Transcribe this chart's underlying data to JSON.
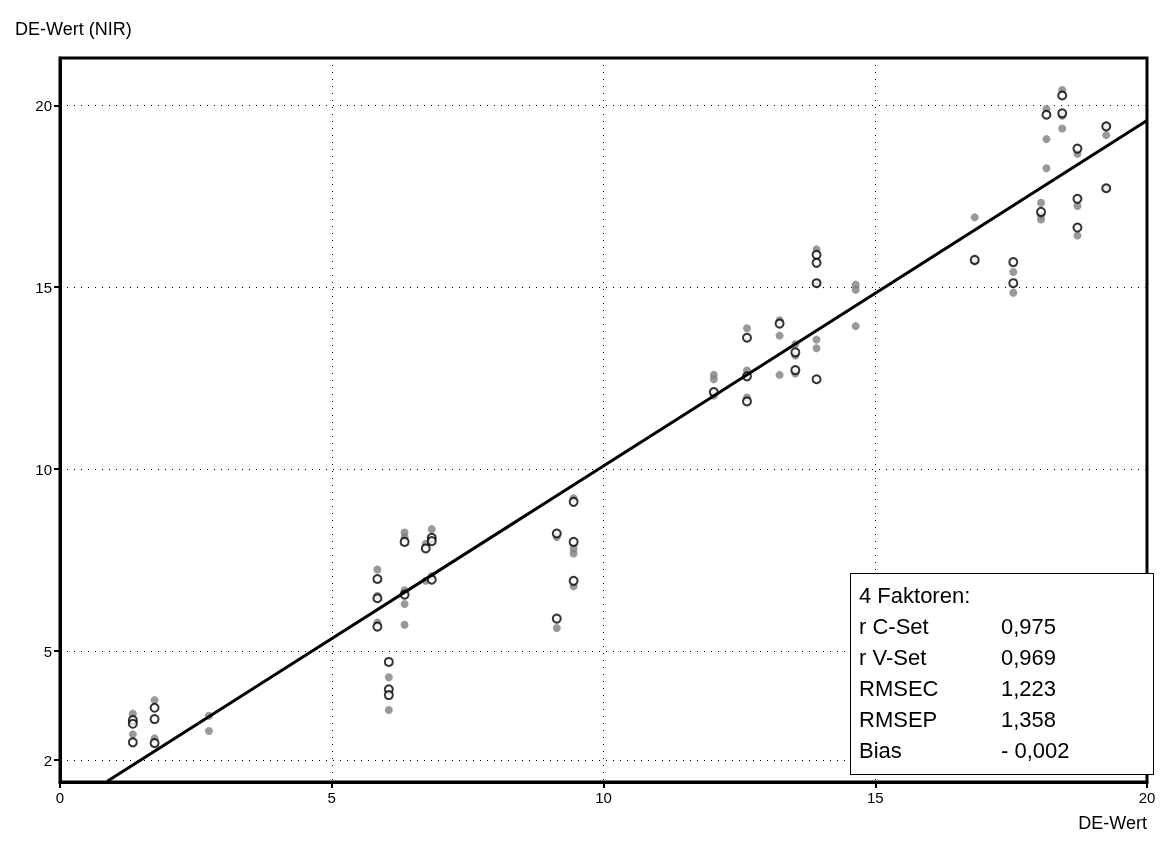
{
  "chart_data": {
    "type": "scatter",
    "xlabel": "DE-Wert",
    "ylabel": "DE-Wert (NIR)",
    "xlim": [
      0,
      20
    ],
    "ylim": [
      1.4,
      21.3
    ],
    "xticks": [
      0,
      5,
      10,
      15,
      20
    ],
    "yticks": [
      2,
      5,
      10,
      15,
      20
    ],
    "grid": true,
    "annotations": [
      "4 Faktoren:",
      "r C-Set",
      "0,975",
      "r V-Set",
      "0,969",
      "RMSEC",
      "1,223",
      "RMSEP",
      "1,358",
      "Bias",
      "- 0,002"
    ],
    "series": [
      {
        "color": "#808080",
        "marker": "circle",
        "x": [
          1.34,
          1.34,
          1.74,
          1.74,
          2.74,
          2.74,
          5.84,
          5.84,
          5.84,
          6.05,
          6.05,
          6.34,
          6.34,
          6.34,
          6.34,
          6.34,
          6.73,
          6.73,
          6.84,
          6.84,
          9.14,
          9.14,
          9.45,
          9.45,
          9.45,
          9.45,
          12.03,
          12.03,
          12.03,
          12.64,
          12.64,
          12.64,
          13.24,
          13.24,
          13.24,
          13.53,
          13.53,
          13.53,
          13.92,
          13.92,
          13.92,
          13.92,
          14.64,
          14.64,
          14.64,
          16.83,
          16.83,
          17.54,
          17.54,
          18.05,
          18.05,
          18.05,
          18.15,
          18.15,
          18.15,
          18.44,
          18.44,
          18.44,
          18.72,
          18.72,
          18.72,
          19.25,
          19.25,
          19.25
        ],
        "values": [
          3.28,
          2.71,
          3.65,
          2.6,
          3.22,
          2.8,
          7.24,
          6.52,
          5.78,
          4.28,
          3.38,
          8.26,
          8.13,
          6.67,
          6.29,
          5.72,
          7.95,
          6.93,
          8.35,
          7.06,
          8.13,
          5.63,
          9.2,
          7.82,
          7.68,
          6.78,
          12.59,
          12.47,
          12.02,
          13.87,
          12.71,
          11.97,
          14.09,
          13.67,
          12.59,
          13.43,
          13.12,
          12.63,
          16.04,
          15.11,
          13.56,
          13.32,
          15.07,
          14.93,
          13.93,
          16.92,
          15.71,
          15.42,
          14.85,
          17.32,
          16.97,
          16.86,
          19.9,
          19.07,
          18.27,
          20.42,
          19.71,
          19.36,
          18.67,
          17.23,
          16.42,
          19.42,
          19.18,
          17.72
        ]
      },
      {
        "color": "#000000",
        "marker": "circle",
        "x": [
          1.34,
          1.34,
          1.34,
          1.74,
          1.74,
          1.74,
          5.84,
          5.84,
          5.84,
          6.05,
          6.05,
          6.05,
          6.34,
          6.34,
          6.73,
          6.84,
          6.84,
          6.84,
          9.14,
          9.14,
          9.45,
          9.45,
          9.45,
          12.03,
          12.64,
          12.64,
          12.64,
          13.24,
          13.53,
          13.53,
          13.92,
          13.92,
          13.92,
          13.92,
          16.83,
          17.54,
          17.54,
          18.05,
          18.15,
          18.44,
          18.44,
          18.72,
          18.72,
          18.72,
          19.25,
          19.25
        ],
        "values": [
          3.1,
          3.0,
          2.49,
          3.44,
          3.13,
          2.47,
          6.98,
          6.45,
          5.67,
          4.7,
          3.95,
          3.79,
          8.0,
          6.55,
          7.82,
          8.11,
          8.02,
          6.96,
          8.23,
          5.89,
          9.1,
          8.0,
          6.93,
          12.12,
          13.61,
          12.55,
          11.86,
          14.0,
          13.21,
          12.72,
          15.89,
          15.67,
          15.11,
          12.47,
          15.75,
          15.69,
          15.11,
          17.07,
          19.74,
          20.27,
          19.78,
          18.81,
          17.43,
          16.64,
          19.42,
          17.72
        ]
      },
      {
        "type": "line",
        "color": "#000000",
        "x": [
          0.87,
          20
        ],
        "values": [
          1.42,
          19.58
        ]
      }
    ]
  }
}
